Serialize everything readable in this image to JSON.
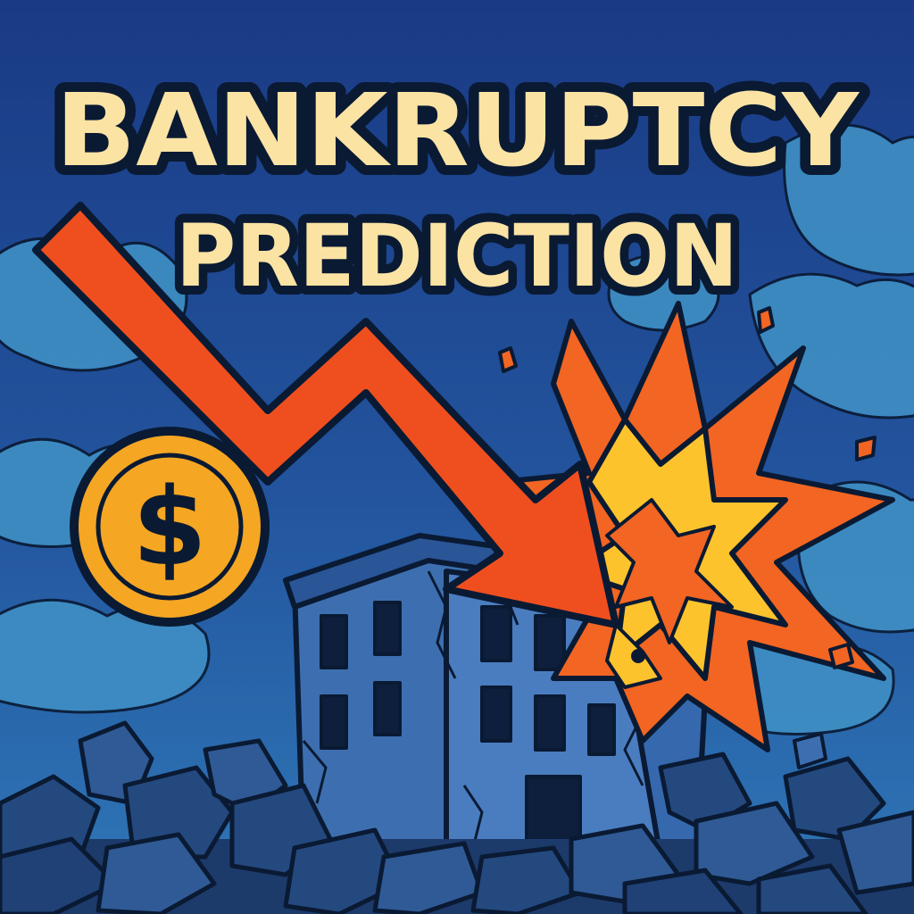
{
  "poster": {
    "title_line_1": "BANKRUPTCY",
    "title_line_2": "PREDICTION",
    "coin_symbol": "$"
  },
  "icons": [
    "falling-trend-arrow-icon",
    "dollar-coin-icon",
    "explosion-icon",
    "crumbling-building-icon",
    "rubble-icon",
    "storm-clouds-icon"
  ],
  "colors": {
    "background_top": "#1b3f8a",
    "background_bottom": "#2f78b8",
    "cloud": "#3f8fc4",
    "title_fill": "#fbe3a4",
    "outline": "#0a1a33",
    "arrow": "#ef4f1f",
    "coin": "#f5a623",
    "explosion_outer": "#f26522",
    "explosion_inner": "#fdc32d",
    "building": "#3d6fb0",
    "rubble": "#24497f"
  }
}
